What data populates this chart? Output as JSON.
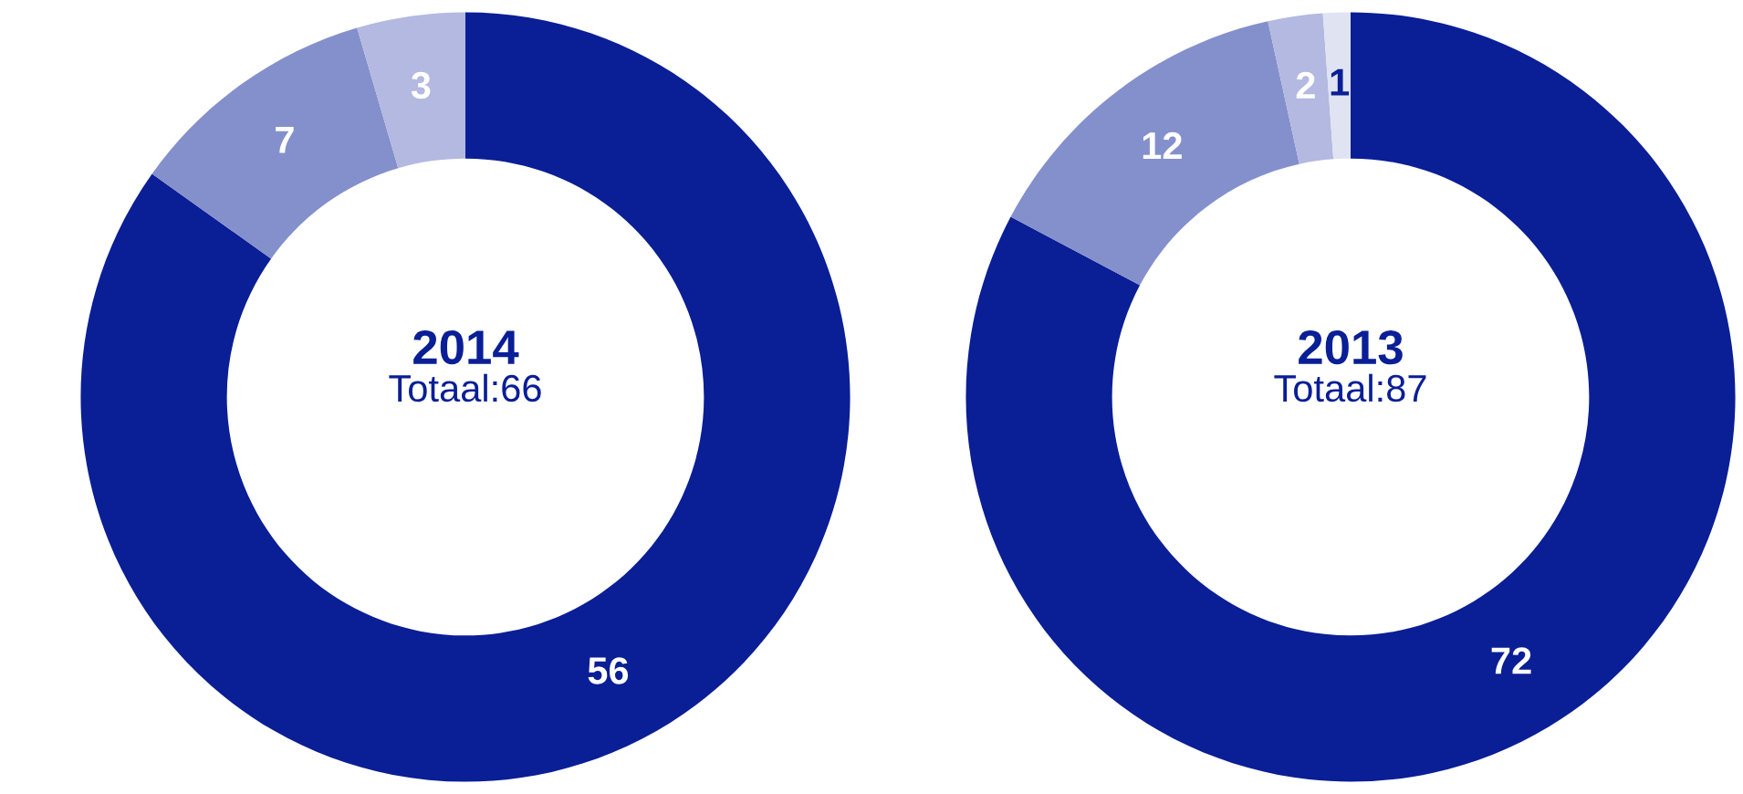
{
  "chart_data": [
    {
      "type": "donut",
      "title": "2014",
      "subtitle": "Totaal:66",
      "categories": [
        null,
        null,
        null
      ],
      "values": [
        56,
        7,
        3
      ],
      "colors": [
        "#0a1e96",
        "#8490cc",
        "#b3b9e0"
      ],
      "data_labels": true
    },
    {
      "type": "donut",
      "title": "2013",
      "subtitle": "Totaal:87",
      "categories": [
        null,
        null,
        null,
        null
      ],
      "values": [
        72,
        12,
        2,
        1
      ],
      "colors": [
        "#0a1e96",
        "#8490cc",
        "#b3b9e0",
        "#e0e3f2"
      ],
      "data_labels": true
    }
  ]
}
